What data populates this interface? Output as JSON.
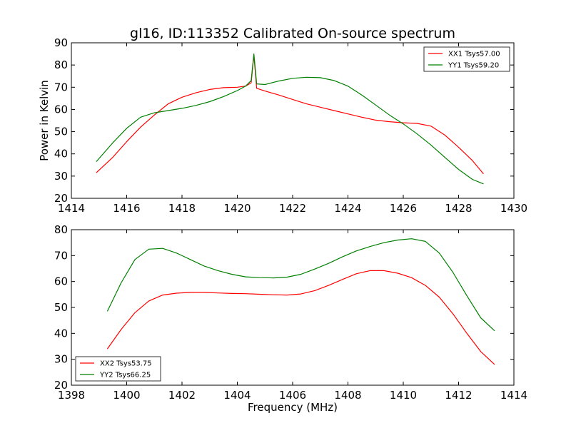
{
  "figure": {
    "title": "gl16, ID:113352 Calibrated On-source spectrum"
  },
  "chart_data": [
    {
      "type": "line",
      "ylabel": "Power in Kelvin",
      "xlabel": "",
      "xlim": [
        1414,
        1430
      ],
      "ylim": [
        20,
        90
      ],
      "xticks": [
        1414,
        1416,
        1418,
        1420,
        1422,
        1424,
        1426,
        1428,
        1430
      ],
      "yticks": [
        20,
        30,
        40,
        50,
        60,
        70,
        80,
        90
      ],
      "grid": false,
      "legend_position": "top-right",
      "series": [
        {
          "name": "XX1 Tsys57.00",
          "color": "#ff0000",
          "x": [
            1414.9,
            1415.5,
            1416.0,
            1416.5,
            1417.0,
            1417.5,
            1418.0,
            1418.5,
            1419.0,
            1419.5,
            1420.0,
            1420.3,
            1420.5,
            1420.6,
            1420.7,
            1421.0,
            1421.5,
            1422.0,
            1422.5,
            1423.0,
            1423.5,
            1424.0,
            1424.5,
            1425.0,
            1425.5,
            1426.0,
            1426.5,
            1427.0,
            1427.5,
            1428.0,
            1428.5,
            1428.9
          ],
          "y": [
            31.5,
            38.5,
            45.5,
            52.0,
            57.5,
            62.5,
            65.5,
            67.5,
            69.0,
            69.8,
            70.0,
            70.5,
            72.0,
            84.5,
            69.5,
            68.3,
            66.5,
            64.5,
            62.5,
            61.0,
            59.5,
            58.0,
            56.5,
            55.2,
            54.5,
            54.0,
            53.7,
            52.5,
            48.5,
            43.0,
            37.0,
            31.0
          ]
        },
        {
          "name": "YY1 Tsys59.20",
          "color": "#008000",
          "x": [
            1414.9,
            1415.5,
            1416.0,
            1416.5,
            1417.0,
            1417.5,
            1418.0,
            1418.5,
            1419.0,
            1419.5,
            1420.0,
            1420.3,
            1420.5,
            1420.6,
            1420.7,
            1421.0,
            1421.5,
            1422.0,
            1422.5,
            1423.0,
            1423.5,
            1424.0,
            1424.5,
            1425.0,
            1425.5,
            1426.0,
            1426.5,
            1427.0,
            1427.5,
            1428.0,
            1428.5,
            1428.9
          ],
          "y": [
            36.5,
            45.0,
            51.5,
            56.5,
            58.5,
            59.5,
            60.5,
            61.8,
            63.5,
            65.8,
            68.5,
            70.5,
            73.0,
            85.0,
            71.5,
            71.2,
            72.8,
            74.0,
            74.5,
            74.3,
            73.0,
            70.5,
            66.5,
            62.0,
            57.5,
            53.5,
            49.0,
            44.0,
            38.5,
            33.0,
            28.5,
            26.5
          ]
        }
      ]
    },
    {
      "type": "line",
      "ylabel": "",
      "xlabel": "Frequency (MHz)",
      "xlim": [
        1398,
        1414
      ],
      "ylim": [
        20,
        80
      ],
      "xticks": [
        1398,
        1400,
        1402,
        1404,
        1406,
        1408,
        1410,
        1412,
        1414
      ],
      "yticks": [
        20,
        30,
        40,
        50,
        60,
        70,
        80
      ],
      "grid": false,
      "legend_position": "bottom-left",
      "series": [
        {
          "name": "XX2 Tsys53.75",
          "color": "#ff0000",
          "x": [
            1399.3,
            1399.8,
            1400.3,
            1400.8,
            1401.3,
            1401.8,
            1402.3,
            1402.8,
            1403.3,
            1403.8,
            1404.3,
            1404.8,
            1405.3,
            1405.8,
            1406.3,
            1406.8,
            1407.3,
            1407.8,
            1408.3,
            1408.8,
            1409.3,
            1409.8,
            1410.3,
            1410.8,
            1411.3,
            1411.8,
            1412.3,
            1412.8,
            1413.3
          ],
          "y": [
            34.0,
            41.5,
            48.0,
            52.5,
            54.8,
            55.5,
            55.8,
            55.8,
            55.6,
            55.4,
            55.3,
            55.1,
            54.9,
            54.8,
            55.2,
            56.5,
            58.5,
            60.8,
            63.0,
            64.2,
            64.2,
            63.2,
            61.5,
            58.5,
            54.0,
            47.5,
            40.0,
            33.0,
            28.0
          ]
        },
        {
          "name": "YY2 Tsys66.25",
          "color": "#008000",
          "x": [
            1399.3,
            1399.8,
            1400.3,
            1400.8,
            1401.3,
            1401.8,
            1402.3,
            1402.8,
            1403.3,
            1403.8,
            1404.3,
            1404.8,
            1405.3,
            1405.8,
            1406.3,
            1406.8,
            1407.3,
            1407.8,
            1408.3,
            1408.8,
            1409.3,
            1409.8,
            1410.3,
            1410.8,
            1411.3,
            1411.8,
            1412.3,
            1412.8,
            1413.3
          ],
          "y": [
            48.5,
            59.5,
            68.5,
            72.5,
            72.8,
            71.0,
            68.5,
            66.0,
            64.2,
            62.8,
            61.8,
            61.5,
            61.4,
            61.7,
            62.8,
            64.8,
            67.0,
            69.5,
            71.8,
            73.5,
            75.0,
            76.0,
            76.5,
            75.5,
            71.0,
            63.5,
            54.5,
            46.0,
            41.0
          ]
        }
      ]
    }
  ]
}
